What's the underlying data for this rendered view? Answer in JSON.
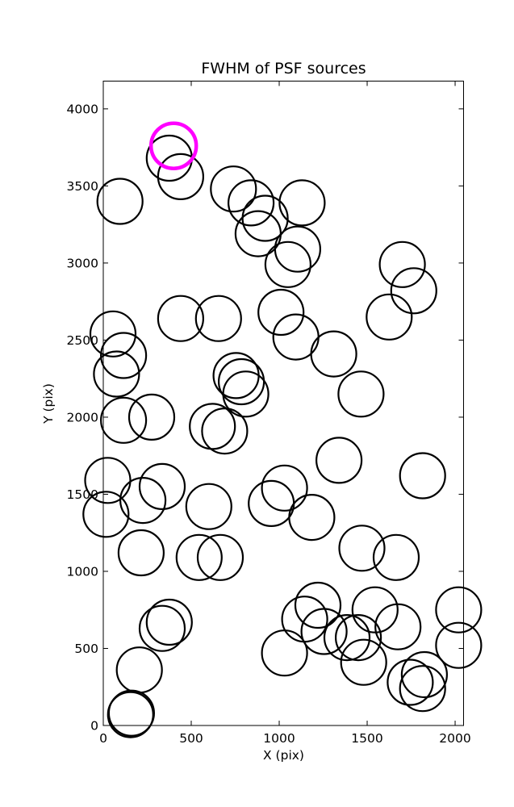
{
  "chart_data": {
    "type": "scatter",
    "title": "FWHM of PSF sources",
    "xlabel": "X (pix)",
    "ylabel": "Y (pix)",
    "xlim": [
      0,
      2048
    ],
    "ylim": [
      0,
      4180
    ],
    "xticks": [
      0,
      500,
      1000,
      1500,
      2000
    ],
    "yticks": [
      0,
      500,
      1000,
      1500,
      2000,
      2500,
      3000,
      3500,
      4000
    ],
    "marker": "open-circle",
    "series": [
      {
        "color": "#000000",
        "points": [
          [
            95,
            3400
          ],
          [
            375,
            3680
          ],
          [
            440,
            3560
          ],
          [
            740,
            3480
          ],
          [
            840,
            3390
          ],
          [
            920,
            3290
          ],
          [
            880,
            3190
          ],
          [
            1130,
            3390
          ],
          [
            1105,
            3090
          ],
          [
            1050,
            2990
          ],
          [
            1700,
            2990
          ],
          [
            1765,
            2820
          ],
          [
            1625,
            2650
          ],
          [
            1010,
            2680
          ],
          [
            1095,
            2520
          ],
          [
            1310,
            2410
          ],
          [
            55,
            2540
          ],
          [
            115,
            2400
          ],
          [
            75,
            2280
          ],
          [
            440,
            2640
          ],
          [
            655,
            2640
          ],
          [
            755,
            2270
          ],
          [
            785,
            2230
          ],
          [
            810,
            2150
          ],
          [
            1465,
            2150
          ],
          [
            115,
            1980
          ],
          [
            275,
            2000
          ],
          [
            620,
            1940
          ],
          [
            690,
            1910
          ],
          [
            1340,
            1720
          ],
          [
            1815,
            1620
          ],
          [
            25,
            1590
          ],
          [
            225,
            1460
          ],
          [
            335,
            1550
          ],
          [
            600,
            1420
          ],
          [
            15,
            1370
          ],
          [
            1030,
            1540
          ],
          [
            955,
            1440
          ],
          [
            1185,
            1350
          ],
          [
            215,
            1120
          ],
          [
            545,
            1090
          ],
          [
            665,
            1090
          ],
          [
            1470,
            1150
          ],
          [
            1665,
            1090
          ],
          [
            335,
            630
          ],
          [
            375,
            670
          ],
          [
            1220,
            780
          ],
          [
            1145,
            690
          ],
          [
            1255,
            610
          ],
          [
            1385,
            570
          ],
          [
            1450,
            570
          ],
          [
            1545,
            750
          ],
          [
            1675,
            640
          ],
          [
            2020,
            750
          ],
          [
            2020,
            520
          ],
          [
            1030,
            470
          ],
          [
            1480,
            410
          ],
          [
            1745,
            280
          ],
          [
            1825,
            330
          ],
          [
            1815,
            240
          ],
          [
            205,
            360
          ],
          [
            160,
            80
          ],
          [
            155,
            70
          ]
        ]
      },
      {
        "color": "#ff00ff",
        "points": [
          [
            400,
            3760
          ]
        ]
      }
    ],
    "grid": false,
    "legend": "none"
  }
}
